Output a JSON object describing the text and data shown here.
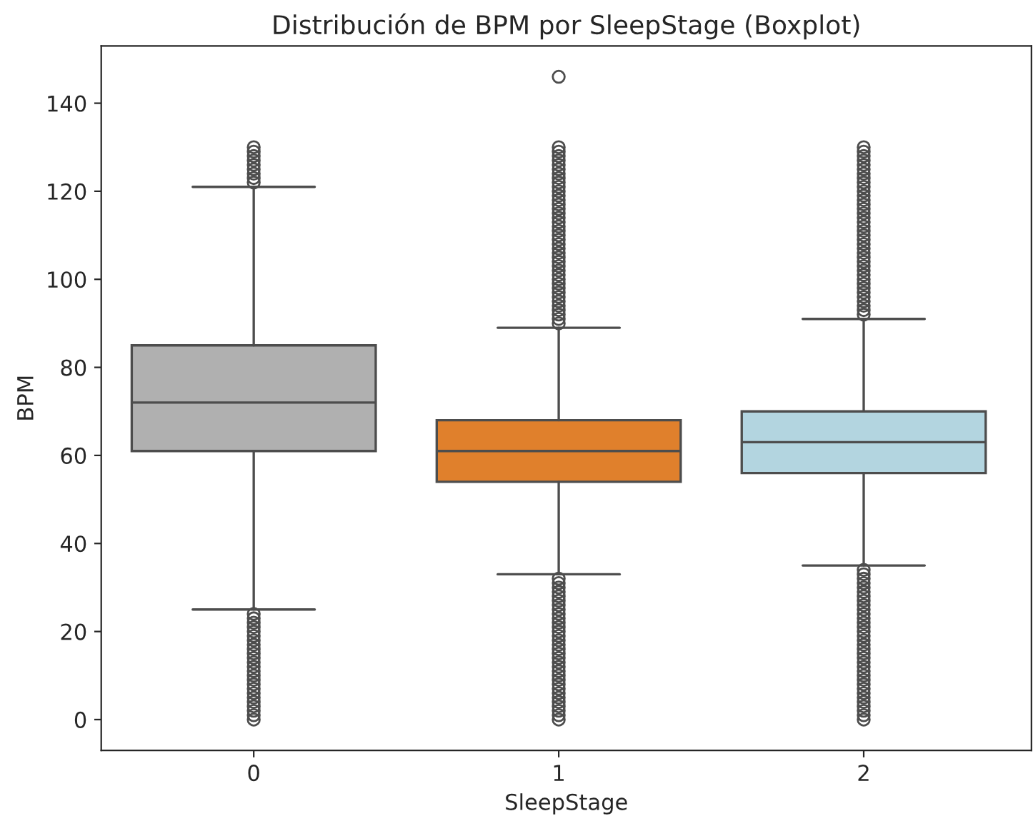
{
  "chart_data": {
    "type": "box",
    "title": "Distribución de BPM por SleepStage (Boxplot)",
    "xlabel": "SleepStage",
    "ylabel": "BPM",
    "categories": [
      "0",
      "1",
      "2"
    ],
    "colors": [
      "#b0b0b0",
      "#e0802c",
      "#b3d5e0"
    ],
    "boxes": [
      {
        "low": 25,
        "q1": 61,
        "median": 72,
        "q3": 85,
        "high": 121,
        "outliers": [
          0,
          1,
          2,
          3,
          4,
          5,
          6,
          7,
          8,
          9,
          10,
          11,
          12,
          13,
          14,
          15,
          16,
          17,
          18,
          19,
          20,
          21,
          22,
          23,
          24,
          122,
          123,
          124,
          125,
          126,
          127,
          128,
          129,
          130
        ]
      },
      {
        "low": 33,
        "q1": 54,
        "median": 61,
        "q3": 68,
        "high": 89,
        "outliers": [
          0,
          1,
          2,
          3,
          4,
          5,
          6,
          7,
          8,
          9,
          10,
          11,
          12,
          13,
          14,
          15,
          16,
          17,
          18,
          19,
          20,
          21,
          22,
          23,
          24,
          25,
          26,
          27,
          28,
          29,
          30,
          31,
          32,
          90,
          91,
          92,
          93,
          94,
          95,
          96,
          97,
          98,
          99,
          100,
          101,
          102,
          103,
          104,
          105,
          106,
          107,
          108,
          109,
          110,
          111,
          112,
          113,
          114,
          115,
          116,
          117,
          118,
          119,
          120,
          121,
          122,
          123,
          124,
          125,
          126,
          127,
          128,
          129,
          130,
          146
        ]
      },
      {
        "low": 35,
        "q1": 56,
        "median": 63,
        "q3": 70,
        "high": 91,
        "outliers": [
          0,
          1,
          2,
          3,
          4,
          5,
          6,
          7,
          8,
          9,
          10,
          11,
          12,
          13,
          14,
          15,
          16,
          17,
          18,
          19,
          20,
          21,
          22,
          23,
          24,
          25,
          26,
          27,
          28,
          29,
          30,
          31,
          32,
          33,
          34,
          92,
          93,
          94,
          95,
          96,
          97,
          98,
          99,
          100,
          101,
          102,
          103,
          104,
          105,
          106,
          107,
          108,
          109,
          110,
          111,
          112,
          113,
          114,
          115,
          116,
          117,
          118,
          119,
          120,
          121,
          122,
          123,
          124,
          125,
          126,
          127,
          128,
          129,
          130
        ]
      }
    ],
    "ylim": [
      -7,
      153
    ],
    "yticks": [
      0,
      20,
      40,
      60,
      80,
      100,
      120,
      140
    ],
    "grid": false
  }
}
